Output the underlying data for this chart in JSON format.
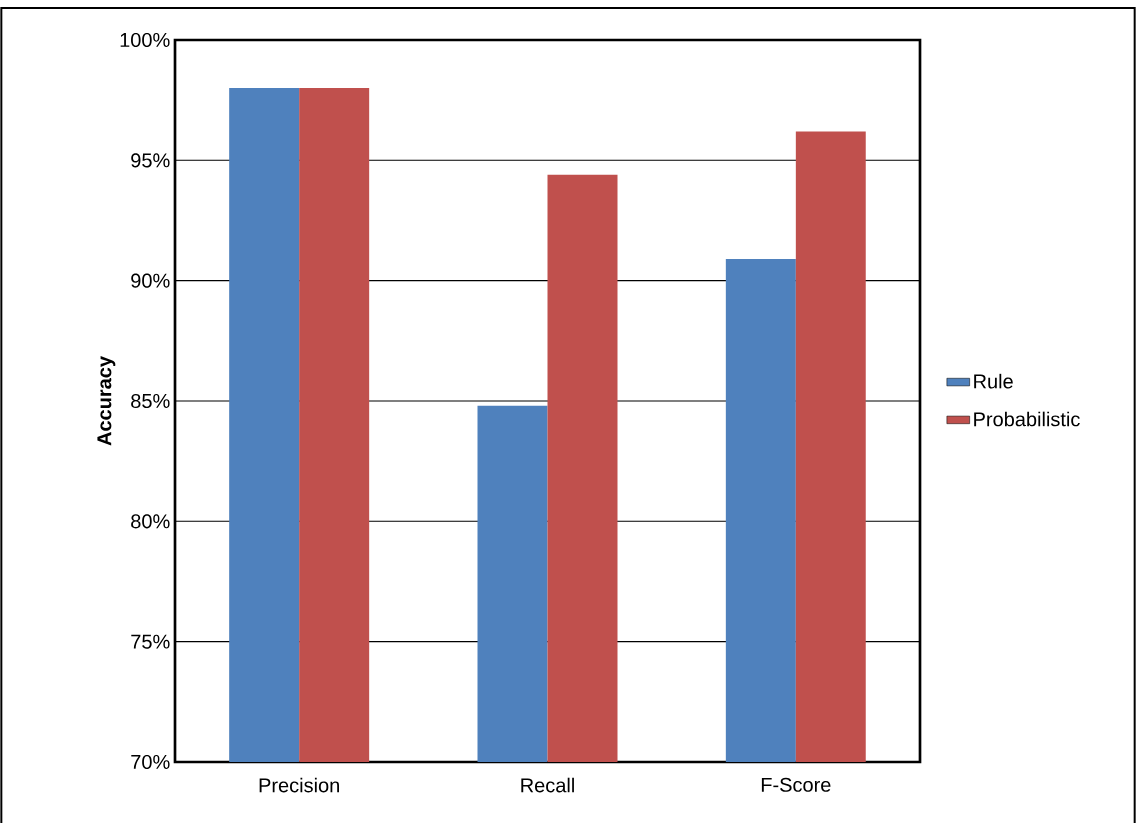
{
  "chart_data": {
    "type": "bar",
    "ylabel": "Accuracy",
    "categories": [
      "Precision",
      "Recall",
      "F-Score"
    ],
    "series": [
      {
        "name": "Rule",
        "color": "#4f81bd",
        "values": [
          98.0,
          84.8,
          90.9
        ]
      },
      {
        "name": "Probabilistic",
        "color": "#c0504d",
        "values": [
          98.0,
          94.4,
          96.2
        ]
      }
    ],
    "ylim": [
      70,
      100
    ],
    "yticks": [
      {
        "value": 70,
        "label": "70%"
      },
      {
        "value": 75,
        "label": "75%"
      },
      {
        "value": 80,
        "label": "80%"
      },
      {
        "value": 85,
        "label": "85%"
      },
      {
        "value": 90,
        "label": "90%"
      },
      {
        "value": 95,
        "label": "95%"
      },
      {
        "value": 100,
        "label": "100%"
      }
    ],
    "grid": "y",
    "legend": "right"
  }
}
